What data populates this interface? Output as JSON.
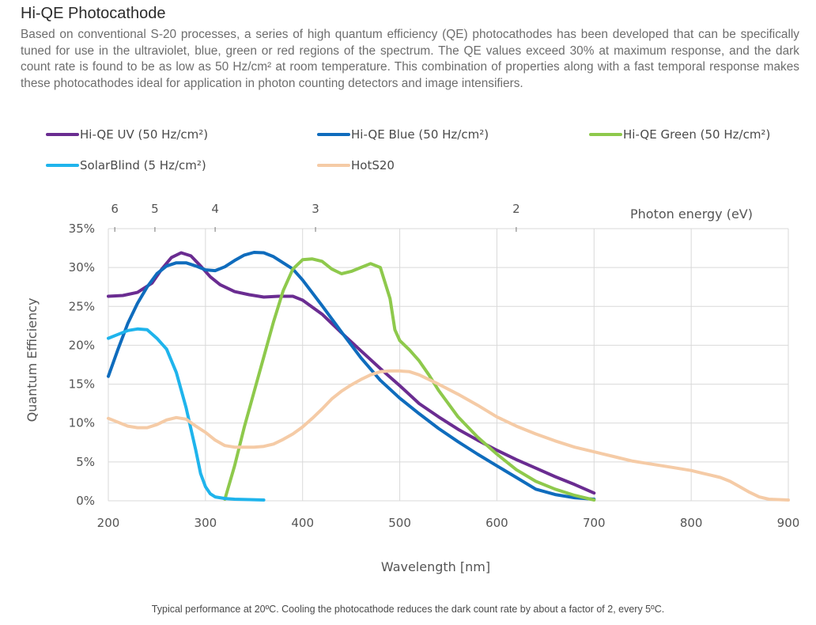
{
  "page": {
    "heading": "Hi-QE Photocathode",
    "intro": "Based on conventional S-20 processes, a series of high quantum efficiency (QE) photocathodes has been developed that can be specifically tuned for use in the ultraviolet, blue, green or red regions of the spectrum. The QE values exceed 30% at maximum response, and the dark count rate is found to be as low as 50 Hz/cm² at room temperature. This combination of properties along with a fast temporal response makes these photocathodes ideal for application in photon counting detectors and image intensifiers.",
    "footnote": "Typical performance at 20ºC. Cooling the photocathode reduces the dark count rate by about a factor of 2, every 5ºC."
  },
  "chart_data": {
    "type": "line",
    "title": "",
    "xlabel": "Wavelength [nm]",
    "ylabel": "Quantum Efficiency",
    "secondary_xlabel": "Photon energy (eV)",
    "xlim": [
      200,
      900
    ],
    "ylim": [
      0,
      35
    ],
    "x_ticks": [
      200,
      300,
      400,
      500,
      600,
      700,
      800,
      900
    ],
    "y_ticks": [
      0,
      5,
      10,
      15,
      20,
      25,
      30,
      35
    ],
    "y_tick_labels": [
      "0%",
      "5%",
      "10%",
      "15%",
      "20%",
      "25%",
      "30%",
      "35%"
    ],
    "energy_ticks": [
      6,
      5,
      4,
      3,
      2
    ],
    "grid": true,
    "legend_position": "top",
    "series": [
      {
        "name": "Hi-QE UV (50 Hz/cm²)",
        "color": "#6a2c91",
        "points": [
          [
            200,
            26.3
          ],
          [
            215,
            26.4
          ],
          [
            230,
            26.8
          ],
          [
            245,
            28
          ],
          [
            255,
            29.8
          ],
          [
            265,
            31.3
          ],
          [
            275,
            31.9
          ],
          [
            285,
            31.5
          ],
          [
            295,
            30.2
          ],
          [
            305,
            28.8
          ],
          [
            315,
            27.8
          ],
          [
            330,
            26.9
          ],
          [
            345,
            26.5
          ],
          [
            360,
            26.2
          ],
          [
            375,
            26.3
          ],
          [
            390,
            26.3
          ],
          [
            400,
            25.8
          ],
          [
            420,
            24
          ],
          [
            440,
            21.6
          ],
          [
            460,
            19.3
          ],
          [
            480,
            17
          ],
          [
            500,
            14.8
          ],
          [
            520,
            12.5
          ],
          [
            540,
            10.8
          ],
          [
            560,
            9.2
          ],
          [
            580,
            7.8
          ],
          [
            600,
            6.5
          ],
          [
            620,
            5.3
          ],
          [
            640,
            4.2
          ],
          [
            660,
            3.1
          ],
          [
            680,
            2.1
          ],
          [
            700,
            1.0
          ]
        ]
      },
      {
        "name": "Hi-QE Blue (50 Hz/cm²)",
        "color": "#0f6cbd",
        "points": [
          [
            200,
            16
          ],
          [
            210,
            19.5
          ],
          [
            220,
            22.8
          ],
          [
            230,
            25.4
          ],
          [
            240,
            27.5
          ],
          [
            250,
            29.2
          ],
          [
            260,
            30.2
          ],
          [
            270,
            30.6
          ],
          [
            280,
            30.6
          ],
          [
            290,
            30.2
          ],
          [
            300,
            29.7
          ],
          [
            310,
            29.6
          ],
          [
            320,
            30.1
          ],
          [
            330,
            30.9
          ],
          [
            340,
            31.6
          ],
          [
            350,
            31.95
          ],
          [
            360,
            31.9
          ],
          [
            370,
            31.4
          ],
          [
            380,
            30.6
          ],
          [
            390,
            29.8
          ],
          [
            400,
            28.4
          ],
          [
            420,
            25.1
          ],
          [
            440,
            21.7
          ],
          [
            460,
            18.4
          ],
          [
            480,
            15.5
          ],
          [
            500,
            13.2
          ],
          [
            520,
            11.2
          ],
          [
            540,
            9.3
          ],
          [
            560,
            7.6
          ],
          [
            580,
            6
          ],
          [
            600,
            4.5
          ],
          [
            620,
            3
          ],
          [
            640,
            1.5
          ],
          [
            660,
            0.8
          ],
          [
            680,
            0.4
          ],
          [
            700,
            0.2
          ]
        ]
      },
      {
        "name": "Hi-QE Green (50 Hz/cm²)",
        "color": "#8ec94c",
        "points": [
          [
            320,
            0.2
          ],
          [
            330,
            4.5
          ],
          [
            340,
            9.5
          ],
          [
            350,
            14
          ],
          [
            360,
            18.5
          ],
          [
            370,
            23
          ],
          [
            380,
            27
          ],
          [
            390,
            29.8
          ],
          [
            400,
            31
          ],
          [
            410,
            31.1
          ],
          [
            420,
            30.8
          ],
          [
            430,
            29.8
          ],
          [
            440,
            29.2
          ],
          [
            450,
            29.5
          ],
          [
            460,
            30
          ],
          [
            470,
            30.5
          ],
          [
            480,
            30
          ],
          [
            490,
            26
          ],
          [
            495,
            22
          ],
          [
            500,
            20.6
          ],
          [
            510,
            19.4
          ],
          [
            520,
            18
          ],
          [
            530,
            16.2
          ],
          [
            540,
            14.2
          ],
          [
            560,
            10.8
          ],
          [
            580,
            8.2
          ],
          [
            600,
            6
          ],
          [
            620,
            4
          ],
          [
            640,
            2.5
          ],
          [
            660,
            1.5
          ],
          [
            680,
            0.7
          ],
          [
            700,
            0.1
          ]
        ]
      },
      {
        "name": "SolarBlind (5 Hz/cm²)",
        "color": "#1fb4ec",
        "points": [
          [
            200,
            20.9
          ],
          [
            210,
            21.4
          ],
          [
            220,
            21.9
          ],
          [
            230,
            22.1
          ],
          [
            240,
            22
          ],
          [
            250,
            20.9
          ],
          [
            260,
            19.5
          ],
          [
            270,
            16.5
          ],
          [
            280,
            12
          ],
          [
            290,
            6.5
          ],
          [
            295,
            3.5
          ],
          [
            300,
            1.8
          ],
          [
            305,
            0.9
          ],
          [
            310,
            0.5
          ],
          [
            320,
            0.3
          ],
          [
            330,
            0.2
          ],
          [
            345,
            0.15
          ],
          [
            360,
            0.1
          ]
        ]
      },
      {
        "name": "HotS20",
        "color": "#f5cba6",
        "points": [
          [
            200,
            10.6
          ],
          [
            210,
            10.1
          ],
          [
            220,
            9.6
          ],
          [
            230,
            9.4
          ],
          [
            240,
            9.4
          ],
          [
            250,
            9.8
          ],
          [
            260,
            10.4
          ],
          [
            270,
            10.7
          ],
          [
            280,
            10.5
          ],
          [
            290,
            9.6
          ],
          [
            300,
            8.8
          ],
          [
            310,
            7.8
          ],
          [
            320,
            7.1
          ],
          [
            330,
            6.9
          ],
          [
            340,
            6.9
          ],
          [
            350,
            6.9
          ],
          [
            360,
            7
          ],
          [
            370,
            7.3
          ],
          [
            380,
            7.9
          ],
          [
            390,
            8.6
          ],
          [
            400,
            9.5
          ],
          [
            410,
            10.6
          ],
          [
            420,
            11.8
          ],
          [
            430,
            13.1
          ],
          [
            440,
            14.1
          ],
          [
            450,
            14.9
          ],
          [
            460,
            15.6
          ],
          [
            470,
            16.2
          ],
          [
            480,
            16.6
          ],
          [
            490,
            16.7
          ],
          [
            500,
            16.7
          ],
          [
            510,
            16.6
          ],
          [
            520,
            16.2
          ],
          [
            530,
            15.6
          ],
          [
            540,
            15
          ],
          [
            560,
            13.7
          ],
          [
            580,
            12.3
          ],
          [
            600,
            10.8
          ],
          [
            620,
            9.6
          ],
          [
            640,
            8.6
          ],
          [
            660,
            7.7
          ],
          [
            680,
            6.9
          ],
          [
            700,
            6.3
          ],
          [
            720,
            5.7
          ],
          [
            740,
            5.1
          ],
          [
            760,
            4.7
          ],
          [
            780,
            4.3
          ],
          [
            800,
            3.9
          ],
          [
            820,
            3.3
          ],
          [
            830,
            3
          ],
          [
            840,
            2.5
          ],
          [
            850,
            1.8
          ],
          [
            860,
            1.1
          ],
          [
            870,
            0.5
          ],
          [
            880,
            0.2
          ],
          [
            900,
            0.1
          ]
        ]
      }
    ]
  }
}
